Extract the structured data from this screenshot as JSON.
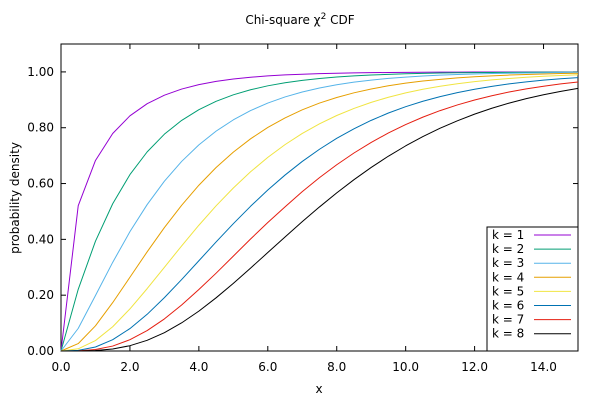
{
  "chart_data": {
    "type": "line",
    "title": "Chi-square χ",
    "title_superscript": "2",
    "title_suffix": " CDF",
    "xlabel": "x",
    "ylabel": "probability density",
    "xlim": [
      0,
      15
    ],
    "ylim": [
      0,
      1.1
    ],
    "xticks": [
      "0.0",
      "2.0",
      "4.0",
      "6.0",
      "8.0",
      "10.0",
      "12.0",
      "14.0"
    ],
    "xtick_values": [
      0,
      2,
      4,
      6,
      8,
      10,
      12,
      14
    ],
    "yticks": [
      "0.00",
      "0.20",
      "0.40",
      "0.60",
      "0.80",
      "1.00"
    ],
    "ytick_values": [
      0,
      0.2,
      0.4,
      0.6,
      0.8,
      1.0
    ],
    "grid": false,
    "legend_position": "bottom-right",
    "x": [
      0,
      0.5,
      1,
      1.5,
      2,
      2.5,
      3,
      3.5,
      4,
      4.5,
      5,
      5.5,
      6,
      6.5,
      7,
      7.5,
      8,
      8.5,
      9,
      9.5,
      10,
      10.5,
      11,
      11.5,
      12,
      12.5,
      13,
      13.5,
      14,
      14.5,
      15
    ],
    "series": [
      {
        "name": "k = 1",
        "color": "#9400d3",
        "values": [
          0,
          0.5205,
          0.6827,
          0.7793,
          0.8427,
          0.8862,
          0.9167,
          0.9386,
          0.9545,
          0.9661,
          0.9747,
          0.981,
          0.9857,
          0.9892,
          0.9918,
          0.9938,
          0.9953,
          0.9965,
          0.9973,
          0.9979,
          0.9984,
          0.9988,
          0.9991,
          0.9993,
          0.9995,
          0.9996,
          0.9997,
          0.9998,
          0.9998,
          0.9999,
          0.9999
        ]
      },
      {
        "name": "k = 2",
        "color": "#009e73",
        "values": [
          0,
          0.2212,
          0.3935,
          0.5276,
          0.6321,
          0.7135,
          0.7769,
          0.8262,
          0.8647,
          0.8946,
          0.9179,
          0.9361,
          0.9502,
          0.9612,
          0.9698,
          0.9765,
          0.9817,
          0.9857,
          0.9889,
          0.9913,
          0.9933,
          0.9948,
          0.9959,
          0.9968,
          0.9975,
          0.9981,
          0.9985,
          0.9988,
          0.9991,
          0.9993,
          0.9994
        ]
      },
      {
        "name": "k = 3",
        "color": "#56b4e9",
        "values": [
          0,
          0.0811,
          0.1987,
          0.3177,
          0.4276,
          0.5247,
          0.6084,
          0.6792,
          0.7385,
          0.7878,
          0.8282,
          0.8614,
          0.8884,
          0.9103,
          0.9281,
          0.9424,
          0.954,
          0.9634,
          0.9707,
          0.9767,
          0.9814,
          0.9852,
          0.9883,
          0.9907,
          0.9926,
          0.9941,
          0.9954,
          0.9963,
          0.9971,
          0.9977,
          0.9982
        ]
      },
      {
        "name": "k = 4",
        "color": "#e69f00",
        "values": [
          0,
          0.0265,
          0.0902,
          0.1734,
          0.2642,
          0.3554,
          0.4422,
          0.5221,
          0.594,
          0.6575,
          0.7127,
          0.7603,
          0.8009,
          0.8352,
          0.8641,
          0.8883,
          0.9084,
          0.9251,
          0.9389,
          0.9503,
          0.9596,
          0.9673,
          0.9734,
          0.9785,
          0.9826,
          0.986,
          0.9887,
          0.9909,
          0.9927,
          0.9941,
          0.9953
        ]
      },
      {
        "name": "k = 5",
        "color": "#f0e442",
        "values": [
          0,
          0.0079,
          0.0374,
          0.0869,
          0.1509,
          0.2235,
          0.3,
          0.3766,
          0.4506,
          0.5201,
          0.5841,
          0.6421,
          0.6938,
          0.7394,
          0.7794,
          0.814,
          0.8438,
          0.8692,
          0.8909,
          0.9092,
          0.9248,
          0.9378,
          0.9486,
          0.9577,
          0.9652,
          0.9715,
          0.9766,
          0.9809,
          0.9844,
          0.9873,
          0.9896
        ]
      },
      {
        "name": "k = 6",
        "color": "#0072b2",
        "values": [
          0,
          0.0022,
          0.0144,
          0.0405,
          0.0803,
          0.1315,
          0.1912,
          0.256,
          0.3233,
          0.3907,
          0.4562,
          0.5185,
          0.5768,
          0.6304,
          0.6792,
          0.7229,
          0.7619,
          0.7962,
          0.8264,
          0.8527,
          0.8753,
          0.8949,
          0.9116,
          0.9259,
          0.938,
          0.9483,
          0.957,
          0.9643,
          0.9704,
          0.9755,
          0.9797
        ]
      },
      {
        "name": "k = 7",
        "color": "#e51e10",
        "values": [
          0,
          0.0006,
          0.0052,
          0.0177,
          0.0405,
          0.0731,
          0.115,
          0.1648,
          0.2202,
          0.2788,
          0.34,
          0.4012,
          0.4604,
          0.5166,
          0.5711,
          0.6213,
          0.6674,
          0.7094,
          0.7473,
          0.7813,
          0.8114,
          0.838,
          0.8614,
          0.8817,
          0.8994,
          0.9147,
          0.9279,
          0.9392,
          0.9488,
          0.957,
          0.964
        ]
      },
      {
        "name": "k = 8",
        "color": "#000000",
        "values": [
          0,
          0.0002,
          0.0018,
          0.0073,
          0.019,
          0.0383,
          0.0656,
          0.1008,
          0.1429,
          0.1906,
          0.2424,
          0.297,
          0.3528,
          0.4086,
          0.4634,
          0.5162,
          0.5665,
          0.6138,
          0.6577,
          0.6982,
          0.735,
          0.7684,
          0.7983,
          0.8249,
          0.8488,
          0.8697,
          0.8882,
          0.9043,
          0.9182,
          0.9303,
          0.9409
        ]
      }
    ]
  }
}
